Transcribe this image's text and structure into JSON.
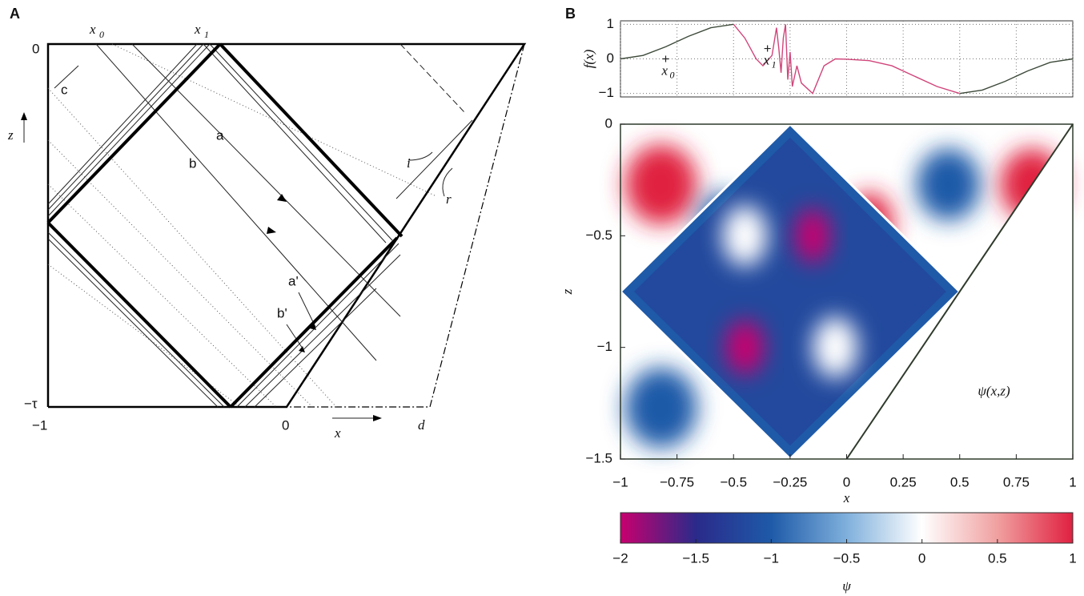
{
  "panel_a": {
    "label": "A",
    "texts": {
      "z0": "0",
      "x0": "x",
      "x0_sub": "0",
      "x1": "x",
      "x1_sub": "1",
      "c": "c",
      "z": "z",
      "a": "a",
      "b": "b",
      "i": "i",
      "r": "r",
      "a2": "a'",
      "b2": "b'",
      "tau": "−τ",
      "xm1": "−1",
      "xzero": "0",
      "x": "x",
      "d": "d"
    }
  },
  "panel_b": {
    "label": "B"
  },
  "chart_data": [
    {
      "type": "line",
      "ylabel": "f(x)",
      "xlim": [
        -1,
        1
      ],
      "ylim": [
        -1.1,
        1.1
      ],
      "xticks": [
        -1,
        -0.75,
        -0.5,
        -0.25,
        0,
        0.25,
        0.5,
        0.75,
        1
      ],
      "yticks": [
        1,
        0,
        {
          "value": -1,
          "label": "−1"
        }
      ],
      "grid": true,
      "series": [
        {
          "color": "#3d4a3a",
          "x": [
            -1,
            -0.9,
            -0.8,
            -0.7,
            -0.6,
            -0.5
          ],
          "values": [
            0,
            0.1,
            0.35,
            0.65,
            0.9,
            1
          ]
        },
        {
          "color": "#d0457a",
          "x": [
            -0.5,
            -0.45,
            -0.4,
            -0.37,
            -0.33,
            -0.31,
            -0.3,
            -0.29,
            -0.28,
            -0.27,
            -0.26,
            -0.25,
            -0.24,
            -0.22,
            -0.2,
            -0.15,
            -0.1,
            -0.05,
            0,
            0.1,
            0.2,
            0.3,
            0.4,
            0.5
          ],
          "values": [
            1,
            0.6,
            0,
            -0.2,
            0.1,
            0.9,
            0.3,
            -0.4,
            0.6,
            1,
            -0.6,
            0.2,
            -0.8,
            -0.2,
            -0.7,
            -1,
            -0.2,
            0,
            -0.01,
            -0.05,
            -0.2,
            -0.5,
            -0.8,
            -1
          ]
        },
        {
          "color": "#3d4a3a",
          "x": [
            0.5,
            0.6,
            0.7,
            0.8,
            0.9,
            1
          ],
          "values": [
            -1,
            -0.9,
            -0.65,
            -0.35,
            -0.1,
            0
          ]
        }
      ],
      "annotations": [
        {
          "text": "x",
          "sub": "0",
          "x": -0.8,
          "y": 0
        },
        {
          "text": "x",
          "sub": "1",
          "x": -0.35,
          "y": 0.3
        }
      ]
    },
    {
      "type": "heatmap",
      "xlabel": "x",
      "ylabel": "z",
      "annotation": "ψ(x,z)",
      "xlim": [
        -1,
        1
      ],
      "ylim": [
        -1.5,
        0
      ],
      "xticks": [
        {
          "value": -1,
          "label": "−1"
        },
        {
          "value": -0.75,
          "label": "−0.75"
        },
        {
          "value": -0.5,
          "label": "−0.5"
        },
        {
          "value": -0.25,
          "label": "−0.25"
        },
        0,
        0.25,
        0.5,
        0.75,
        1
      ],
      "yticks": [
        0,
        {
          "value": -0.5,
          "label": "−0.5"
        },
        {
          "value": -1,
          "label": "−1"
        },
        {
          "value": -1.5,
          "label": "−1.5"
        }
      ]
    },
    {
      "type": "colorbar",
      "xlabel": "ψ",
      "xlim": [
        -2,
        1
      ],
      "xticks": [
        {
          "value": -2,
          "label": "−2"
        },
        {
          "value": -1.5,
          "label": "−1.5"
        },
        {
          "value": -1,
          "label": "−1"
        },
        {
          "value": -0.5,
          "label": "−0.5"
        },
        0,
        0.5,
        1
      ],
      "colors": [
        "#c8006e",
        "#2a2a8a",
        "#1e5aa8",
        "#7fb0dc",
        "#ffffff",
        "#f0a0a0",
        "#e02040"
      ]
    }
  ]
}
